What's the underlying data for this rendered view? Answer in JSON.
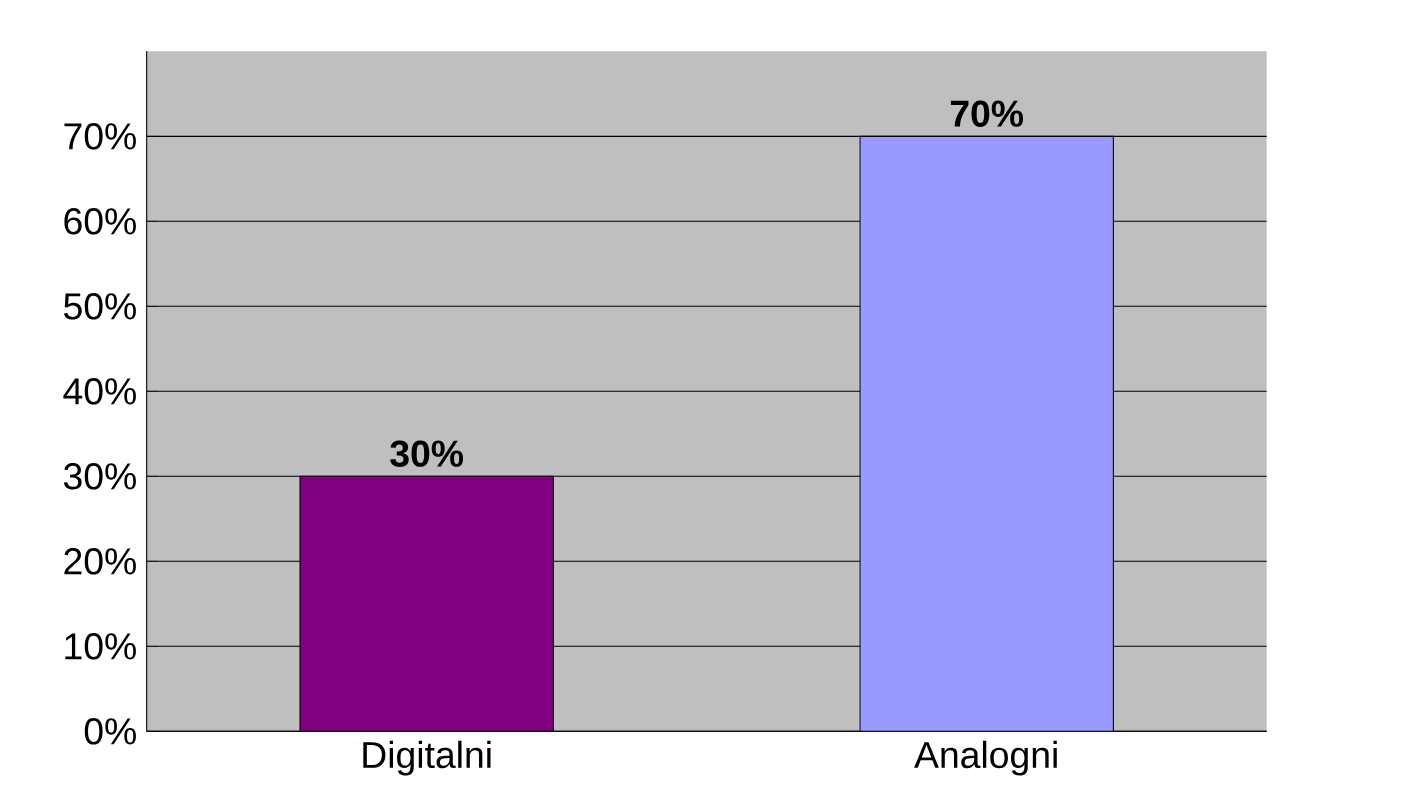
{
  "chart_data": {
    "type": "bar",
    "categories": [
      "Digitalni",
      "Analogni"
    ],
    "values": [
      30,
      70
    ],
    "colors": [
      "#800080",
      "#9999ff"
    ],
    "value_labels": [
      "30%",
      "70%"
    ],
    "ylim": [
      0,
      80
    ],
    "yticks": [
      {
        "value": 0,
        "label": "0%"
      },
      {
        "value": 10,
        "label": "10%"
      },
      {
        "value": 20,
        "label": "20%"
      },
      {
        "value": 30,
        "label": "30%"
      },
      {
        "value": 40,
        "label": "40%"
      },
      {
        "value": 50,
        "label": "50%"
      },
      {
        "value": 60,
        "label": "60%"
      },
      {
        "value": 70,
        "label": "70%"
      }
    ],
    "grid": "y"
  }
}
